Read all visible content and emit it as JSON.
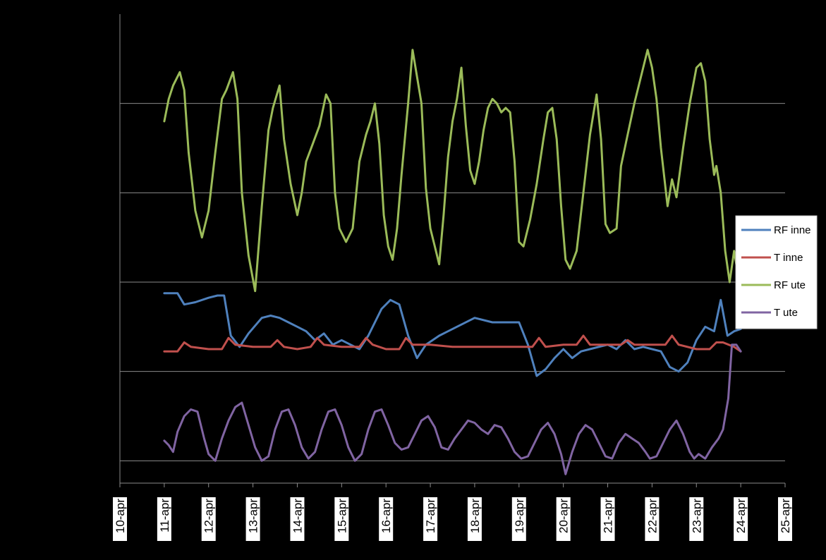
{
  "chart_data": {
    "type": "line",
    "title": "",
    "xlabel": "",
    "ylabel": "",
    "x_ticks": [
      "10-apr",
      "11-apr",
      "12-apr",
      "13-apr",
      "14-apr",
      "15-apr",
      "16-apr",
      "17-apr",
      "18-apr",
      "19-apr",
      "20-apr",
      "21-apr",
      "22-apr",
      "23-apr",
      "24-apr",
      "25-apr"
    ],
    "x_range_days": [
      10,
      25
    ],
    "y_range": [
      -5,
      100
    ],
    "y_gridlines": [
      0,
      20,
      40,
      60,
      80
    ],
    "y_tick_labels_visible": false,
    "grid": "horizontal",
    "legend_position": "right",
    "series": [
      {
        "name": "RF inne",
        "color": "#4f81bd",
        "points": [
          [
            11.0,
            37.5
          ],
          [
            11.3,
            37.5
          ],
          [
            11.45,
            35
          ],
          [
            11.7,
            35.5
          ],
          [
            12.0,
            36.5
          ],
          [
            12.2,
            37
          ],
          [
            12.35,
            37
          ],
          [
            12.5,
            28
          ],
          [
            12.7,
            25.5
          ],
          [
            12.9,
            28.5
          ],
          [
            13.2,
            32
          ],
          [
            13.4,
            32.5
          ],
          [
            13.6,
            32
          ],
          [
            13.8,
            31
          ],
          [
            14.0,
            30
          ],
          [
            14.2,
            29
          ],
          [
            14.4,
            27
          ],
          [
            14.6,
            28.5
          ],
          [
            14.8,
            26
          ],
          [
            15.0,
            27
          ],
          [
            15.2,
            26
          ],
          [
            15.4,
            25
          ],
          [
            15.6,
            28
          ],
          [
            15.9,
            34
          ],
          [
            16.1,
            36
          ],
          [
            16.3,
            35
          ],
          [
            16.5,
            28
          ],
          [
            16.7,
            23
          ],
          [
            16.9,
            26
          ],
          [
            17.2,
            28
          ],
          [
            17.6,
            30
          ],
          [
            18.0,
            32
          ],
          [
            18.4,
            31
          ],
          [
            18.8,
            31
          ],
          [
            19.0,
            31
          ],
          [
            19.2,
            26
          ],
          [
            19.4,
            19
          ],
          [
            19.6,
            20.5
          ],
          [
            19.8,
            23
          ],
          [
            20.0,
            25
          ],
          [
            20.2,
            23
          ],
          [
            20.4,
            24.5
          ],
          [
            20.6,
            25
          ],
          [
            20.8,
            25.5
          ],
          [
            21.0,
            26
          ],
          [
            21.2,
            25
          ],
          [
            21.4,
            27
          ],
          [
            21.6,
            25
          ],
          [
            21.8,
            25.5
          ],
          [
            22.0,
            25
          ],
          [
            22.2,
            24.5
          ],
          [
            22.4,
            21
          ],
          [
            22.6,
            20
          ],
          [
            22.8,
            22
          ],
          [
            23.0,
            27
          ],
          [
            23.2,
            30
          ],
          [
            23.4,
            29
          ],
          [
            23.55,
            36
          ],
          [
            23.7,
            28
          ],
          [
            23.85,
            29
          ],
          [
            24.0,
            29.5
          ]
        ]
      },
      {
        "name": "T inne",
        "color": "#c0504d",
        "points": [
          [
            11.0,
            24.5
          ],
          [
            11.3,
            24.5
          ],
          [
            11.45,
            26.5
          ],
          [
            11.6,
            25.5
          ],
          [
            12.0,
            25
          ],
          [
            12.3,
            25
          ],
          [
            12.45,
            27.5
          ],
          [
            12.6,
            26
          ],
          [
            13.0,
            25.5
          ],
          [
            13.4,
            25.5
          ],
          [
            13.55,
            27
          ],
          [
            13.7,
            25.5
          ],
          [
            14.0,
            25
          ],
          [
            14.3,
            25.5
          ],
          [
            14.45,
            27.5
          ],
          [
            14.6,
            26
          ],
          [
            15.0,
            25.5
          ],
          [
            15.4,
            25.5
          ],
          [
            15.55,
            27.5
          ],
          [
            15.7,
            26
          ],
          [
            16.0,
            25
          ],
          [
            16.3,
            25
          ],
          [
            16.45,
            27.5
          ],
          [
            16.6,
            26
          ],
          [
            17.0,
            26
          ],
          [
            17.5,
            25.5
          ],
          [
            18.0,
            25.5
          ],
          [
            18.5,
            25.5
          ],
          [
            19.0,
            25.5
          ],
          [
            19.3,
            25.5
          ],
          [
            19.45,
            27.5
          ],
          [
            19.6,
            25.5
          ],
          [
            20.0,
            26
          ],
          [
            20.3,
            26
          ],
          [
            20.45,
            28
          ],
          [
            20.6,
            26
          ],
          [
            21.0,
            26
          ],
          [
            21.3,
            26
          ],
          [
            21.45,
            27
          ],
          [
            21.6,
            26
          ],
          [
            22.0,
            26
          ],
          [
            22.3,
            26
          ],
          [
            22.45,
            28
          ],
          [
            22.6,
            26
          ],
          [
            23.0,
            25
          ],
          [
            23.3,
            25
          ],
          [
            23.45,
            26.5
          ],
          [
            23.6,
            26.5
          ],
          [
            23.85,
            25.5
          ],
          [
            24.0,
            24.5
          ]
        ]
      },
      {
        "name": "RF ute",
        "color": "#9bbb59",
        "points": [
          [
            11.0,
            76
          ],
          [
            11.1,
            81
          ],
          [
            11.2,
            84
          ],
          [
            11.35,
            87
          ],
          [
            11.45,
            83
          ],
          [
            11.55,
            69
          ],
          [
            11.7,
            56
          ],
          [
            11.85,
            50
          ],
          [
            12.0,
            56
          ],
          [
            12.15,
            69
          ],
          [
            12.3,
            81
          ],
          [
            12.4,
            83
          ],
          [
            12.55,
            87
          ],
          [
            12.65,
            81
          ],
          [
            12.75,
            60
          ],
          [
            12.9,
            46
          ],
          [
            13.05,
            38
          ],
          [
            13.2,
            57
          ],
          [
            13.35,
            74
          ],
          [
            13.45,
            79
          ],
          [
            13.6,
            84
          ],
          [
            13.7,
            72
          ],
          [
            13.85,
            62
          ],
          [
            14.0,
            55
          ],
          [
            14.1,
            60
          ],
          [
            14.2,
            67
          ],
          [
            14.35,
            71
          ],
          [
            14.5,
            75
          ],
          [
            14.65,
            82
          ],
          [
            14.75,
            80
          ],
          [
            14.85,
            60
          ],
          [
            14.95,
            52
          ],
          [
            15.1,
            49
          ],
          [
            15.25,
            52
          ],
          [
            15.4,
            67
          ],
          [
            15.55,
            73
          ],
          [
            15.65,
            76
          ],
          [
            15.75,
            80
          ],
          [
            15.85,
            71
          ],
          [
            15.95,
            55
          ],
          [
            16.05,
            48
          ],
          [
            16.15,
            45
          ],
          [
            16.25,
            52
          ],
          [
            16.35,
            64
          ],
          [
            16.5,
            80
          ],
          [
            16.6,
            92
          ],
          [
            16.7,
            86
          ],
          [
            16.8,
            80
          ],
          [
            16.9,
            61
          ],
          [
            17.0,
            52
          ],
          [
            17.1,
            48
          ],
          [
            17.2,
            44
          ],
          [
            17.3,
            55
          ],
          [
            17.4,
            68
          ],
          [
            17.5,
            76
          ],
          [
            17.6,
            81
          ],
          [
            17.7,
            88
          ],
          [
            17.8,
            75
          ],
          [
            17.9,
            65
          ],
          [
            18.0,
            62
          ],
          [
            18.1,
            67
          ],
          [
            18.2,
            74
          ],
          [
            18.3,
            79
          ],
          [
            18.4,
            81
          ],
          [
            18.5,
            80
          ],
          [
            18.6,
            78
          ],
          [
            18.7,
            79
          ],
          [
            18.8,
            78
          ],
          [
            18.9,
            67
          ],
          [
            19.0,
            49
          ],
          [
            19.1,
            48
          ],
          [
            19.25,
            54
          ],
          [
            19.4,
            62
          ],
          [
            19.55,
            72
          ],
          [
            19.65,
            78
          ],
          [
            19.75,
            79
          ],
          [
            19.85,
            72
          ],
          [
            19.95,
            57
          ],
          [
            20.05,
            45
          ],
          [
            20.15,
            43
          ],
          [
            20.3,
            47
          ],
          [
            20.45,
            60
          ],
          [
            20.6,
            73
          ],
          [
            20.75,
            82
          ],
          [
            20.85,
            72
          ],
          [
            20.95,
            53
          ],
          [
            21.05,
            51
          ],
          [
            21.2,
            52
          ],
          [
            21.3,
            66
          ],
          [
            21.45,
            73
          ],
          [
            21.6,
            80
          ],
          [
            21.75,
            86
          ],
          [
            21.9,
            92
          ],
          [
            22.0,
            88
          ],
          [
            22.1,
            81
          ],
          [
            22.2,
            70
          ],
          [
            22.35,
            57
          ],
          [
            22.45,
            63
          ],
          [
            22.55,
            59
          ],
          [
            22.7,
            70
          ],
          [
            22.85,
            80
          ],
          [
            23.0,
            88
          ],
          [
            23.1,
            89
          ],
          [
            23.2,
            85
          ],
          [
            23.3,
            72
          ],
          [
            23.4,
            64
          ],
          [
            23.45,
            66
          ],
          [
            23.55,
            60
          ],
          [
            23.65,
            47
          ],
          [
            23.75,
            40
          ],
          [
            23.85,
            47
          ],
          [
            23.95,
            41
          ],
          [
            24.0,
            40
          ]
        ]
      },
      {
        "name": "T ute",
        "color": "#8064a2",
        "points": [
          [
            11.0,
            4.5
          ],
          [
            11.1,
            3.5
          ],
          [
            11.2,
            2
          ],
          [
            11.3,
            6.5
          ],
          [
            11.45,
            10
          ],
          [
            11.6,
            11.5
          ],
          [
            11.75,
            11
          ],
          [
            11.9,
            5
          ],
          [
            12.0,
            1.5
          ],
          [
            12.15,
            0
          ],
          [
            12.3,
            5
          ],
          [
            12.45,
            9
          ],
          [
            12.6,
            12
          ],
          [
            12.75,
            13
          ],
          [
            12.9,
            8
          ],
          [
            13.05,
            3
          ],
          [
            13.2,
            0
          ],
          [
            13.35,
            1
          ],
          [
            13.5,
            7
          ],
          [
            13.65,
            11
          ],
          [
            13.8,
            11.5
          ],
          [
            13.95,
            8
          ],
          [
            14.1,
            3
          ],
          [
            14.25,
            0.5
          ],
          [
            14.4,
            2
          ],
          [
            14.55,
            7
          ],
          [
            14.7,
            11
          ],
          [
            14.85,
            11.5
          ],
          [
            15.0,
            8
          ],
          [
            15.15,
            3
          ],
          [
            15.3,
            0
          ],
          [
            15.45,
            1.5
          ],
          [
            15.6,
            7
          ],
          [
            15.75,
            11
          ],
          [
            15.9,
            11.5
          ],
          [
            16.05,
            8
          ],
          [
            16.2,
            4
          ],
          [
            16.35,
            2.5
          ],
          [
            16.5,
            3
          ],
          [
            16.65,
            6
          ],
          [
            16.8,
            9
          ],
          [
            16.95,
            10
          ],
          [
            17.1,
            7.5
          ],
          [
            17.25,
            3
          ],
          [
            17.4,
            2.5
          ],
          [
            17.55,
            5
          ],
          [
            17.7,
            7
          ],
          [
            17.85,
            9
          ],
          [
            18.0,
            8.5
          ],
          [
            18.15,
            7
          ],
          [
            18.3,
            6
          ],
          [
            18.45,
            8
          ],
          [
            18.6,
            7.5
          ],
          [
            18.75,
            5
          ],
          [
            18.9,
            2
          ],
          [
            19.05,
            0.5
          ],
          [
            19.2,
            1
          ],
          [
            19.35,
            4
          ],
          [
            19.5,
            7
          ],
          [
            19.65,
            8.5
          ],
          [
            19.8,
            6
          ],
          [
            19.95,
            1.5
          ],
          [
            20.05,
            -3
          ],
          [
            20.2,
            2
          ],
          [
            20.35,
            6
          ],
          [
            20.5,
            8
          ],
          [
            20.65,
            7
          ],
          [
            20.8,
            4
          ],
          [
            20.95,
            1
          ],
          [
            21.1,
            0.5
          ],
          [
            21.25,
            4
          ],
          [
            21.4,
            6
          ],
          [
            21.55,
            5
          ],
          [
            21.7,
            4
          ],
          [
            21.85,
            2
          ],
          [
            21.95,
            0.5
          ],
          [
            22.1,
            1
          ],
          [
            22.25,
            4
          ],
          [
            22.4,
            7
          ],
          [
            22.55,
            9
          ],
          [
            22.7,
            6
          ],
          [
            22.85,
            2
          ],
          [
            22.95,
            0.5
          ],
          [
            23.05,
            1.5
          ],
          [
            23.2,
            0.5
          ],
          [
            23.35,
            3
          ],
          [
            23.5,
            5
          ],
          [
            23.6,
            7
          ],
          [
            23.72,
            14
          ],
          [
            23.8,
            26
          ],
          [
            23.9,
            26
          ],
          [
            24.0,
            24.5
          ]
        ]
      }
    ]
  }
}
